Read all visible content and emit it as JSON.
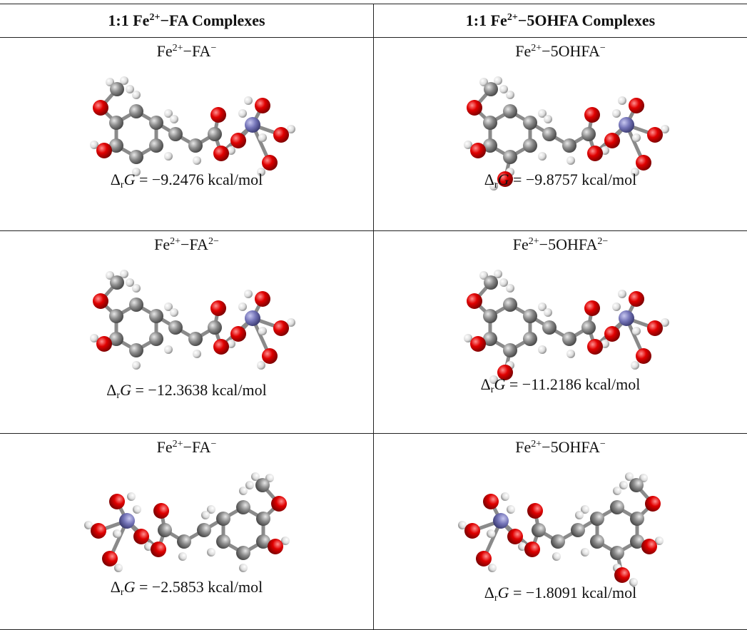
{
  "header": {
    "cols": [
      {
        "prefix": "1:1 Fe",
        "sup": "2+",
        "suffix": "−FA Complexes"
      },
      {
        "prefix": "1:1 Fe",
        "sup": "2+",
        "suffix": "−5OHFA Complexes"
      }
    ]
  },
  "energy_symbol": {
    "delta": "Δ",
    "sub": "r",
    "var": "G",
    "eq": " = "
  },
  "table": {
    "rows": [
      [
        {
          "ion": "Fe",
          "ion_charge": "2+",
          "ligand": "−FA",
          "ligand_charge": "−",
          "energy": "−9.2476 kcal/mol"
        },
        {
          "ion": "Fe",
          "ion_charge": "2+",
          "ligand": "−5OHFA",
          "ligand_charge": "−",
          "energy": "−9.8757 kcal/mol"
        }
      ],
      [
        {
          "ion": "Fe",
          "ion_charge": "2+",
          "ligand": "−FA",
          "ligand_charge": "2−",
          "energy": "−12.3638 kcal/mol"
        },
        {
          "ion": "Fe",
          "ion_charge": "2+",
          "ligand": "−5OHFA",
          "ligand_charge": "2−",
          "energy": "−11.2186 kcal/mol"
        }
      ],
      [
        {
          "ion": "Fe",
          "ion_charge": "2+",
          "ligand": "−FA",
          "ligand_charge": "−",
          "energy": "−2.5853 kcal/mol"
        },
        {
          "ion": "Fe",
          "ion_charge": "2+",
          "ligand": "−5OHFA",
          "ligand_charge": "−",
          "energy": "−1.8091 kcal/mol"
        }
      ]
    ]
  }
}
